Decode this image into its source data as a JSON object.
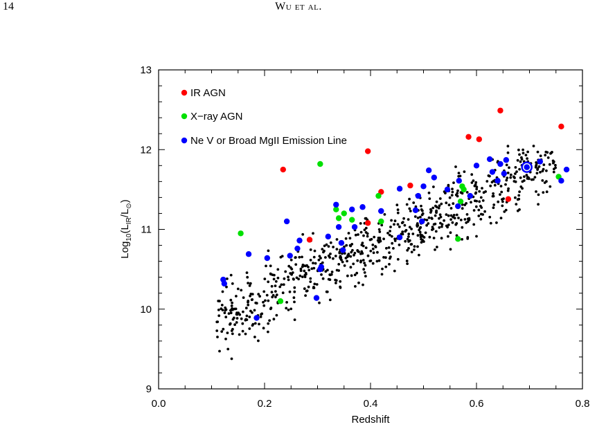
{
  "header": {
    "page_number": "14",
    "running_head": "Wu et al."
  },
  "chart_data": {
    "type": "scatter",
    "xlabel": "Redshift",
    "ylabel": "Log10(LIR/L⊙)",
    "xlim": [
      0.0,
      0.8
    ],
    "ylim": [
      9.0,
      13.0
    ],
    "x_ticks": [
      "0.0",
      "0.2",
      "0.4",
      "0.6",
      "0.8"
    ],
    "y_ticks": [
      "9",
      "10",
      "11",
      "12",
      "13"
    ],
    "grid": false,
    "legend_placement": "top-left",
    "legend": [
      {
        "name": "IR AGN",
        "color": "#ff0000"
      },
      {
        "name": "X−ray AGN",
        "color": "#00e000"
      },
      {
        "name": "Ne V or Broad MgII Emission Line",
        "color": "#0000ff"
      }
    ],
    "background_color": "#000000",
    "series": [
      {
        "name": "IR AGN",
        "color": "#ff0000",
        "points": [
          [
            0.235,
            11.75
          ],
          [
            0.285,
            10.87
          ],
          [
            0.395,
            11.08
          ],
          [
            0.395,
            11.98
          ],
          [
            0.42,
            11.47
          ],
          [
            0.475,
            11.55
          ],
          [
            0.585,
            12.16
          ],
          [
            0.605,
            12.13
          ],
          [
            0.645,
            12.49
          ],
          [
            0.66,
            11.38
          ],
          [
            0.76,
            12.29
          ]
        ]
      },
      {
        "name": "X−ray AGN",
        "color": "#00e000",
        "points": [
          [
            0.155,
            10.95
          ],
          [
            0.23,
            10.1
          ],
          [
            0.305,
            11.82
          ],
          [
            0.335,
            11.25
          ],
          [
            0.34,
            11.14
          ],
          [
            0.35,
            11.2
          ],
          [
            0.365,
            11.12
          ],
          [
            0.415,
            11.42
          ],
          [
            0.42,
            11.1
          ],
          [
            0.565,
            10.88
          ],
          [
            0.57,
            11.35
          ],
          [
            0.573,
            11.54
          ],
          [
            0.576,
            11.5
          ],
          [
            0.695,
            11.78
          ],
          [
            0.755,
            11.66
          ]
        ]
      },
      {
        "name": "Ne V or Broad MgII Emission Line",
        "color": "#0000ff",
        "points": [
          [
            0.122,
            10.37
          ],
          [
            0.124,
            10.32
          ],
          [
            0.17,
            10.69
          ],
          [
            0.185,
            9.89
          ],
          [
            0.205,
            10.64
          ],
          [
            0.242,
            11.1
          ],
          [
            0.248,
            10.67
          ],
          [
            0.262,
            10.76
          ],
          [
            0.266,
            10.86
          ],
          [
            0.298,
            10.14
          ],
          [
            0.305,
            10.5
          ],
          [
            0.307,
            10.53
          ],
          [
            0.32,
            10.91
          ],
          [
            0.335,
            11.31
          ],
          [
            0.34,
            11.03
          ],
          [
            0.345,
            10.83
          ],
          [
            0.348,
            10.74
          ],
          [
            0.365,
            11.25
          ],
          [
            0.37,
            11.03
          ],
          [
            0.385,
            11.28
          ],
          [
            0.42,
            11.23
          ],
          [
            0.455,
            10.9
          ],
          [
            0.455,
            11.51
          ],
          [
            0.485,
            11.24
          ],
          [
            0.49,
            11.42
          ],
          [
            0.497,
            11.1
          ],
          [
            0.5,
            11.54
          ],
          [
            0.51,
            11.74
          ],
          [
            0.52,
            11.65
          ],
          [
            0.545,
            11.5
          ],
          [
            0.565,
            11.29
          ],
          [
            0.567,
            11.61
          ],
          [
            0.588,
            11.42
          ],
          [
            0.6,
            11.8
          ],
          [
            0.625,
            11.88
          ],
          [
            0.63,
            11.72
          ],
          [
            0.64,
            11.61
          ],
          [
            0.645,
            11.82
          ],
          [
            0.652,
            11.7
          ],
          [
            0.656,
            11.87
          ],
          [
            0.695,
            11.78
          ],
          [
            0.72,
            11.85
          ],
          [
            0.76,
            11.61
          ],
          [
            0.77,
            11.75
          ]
        ]
      }
    ]
  }
}
